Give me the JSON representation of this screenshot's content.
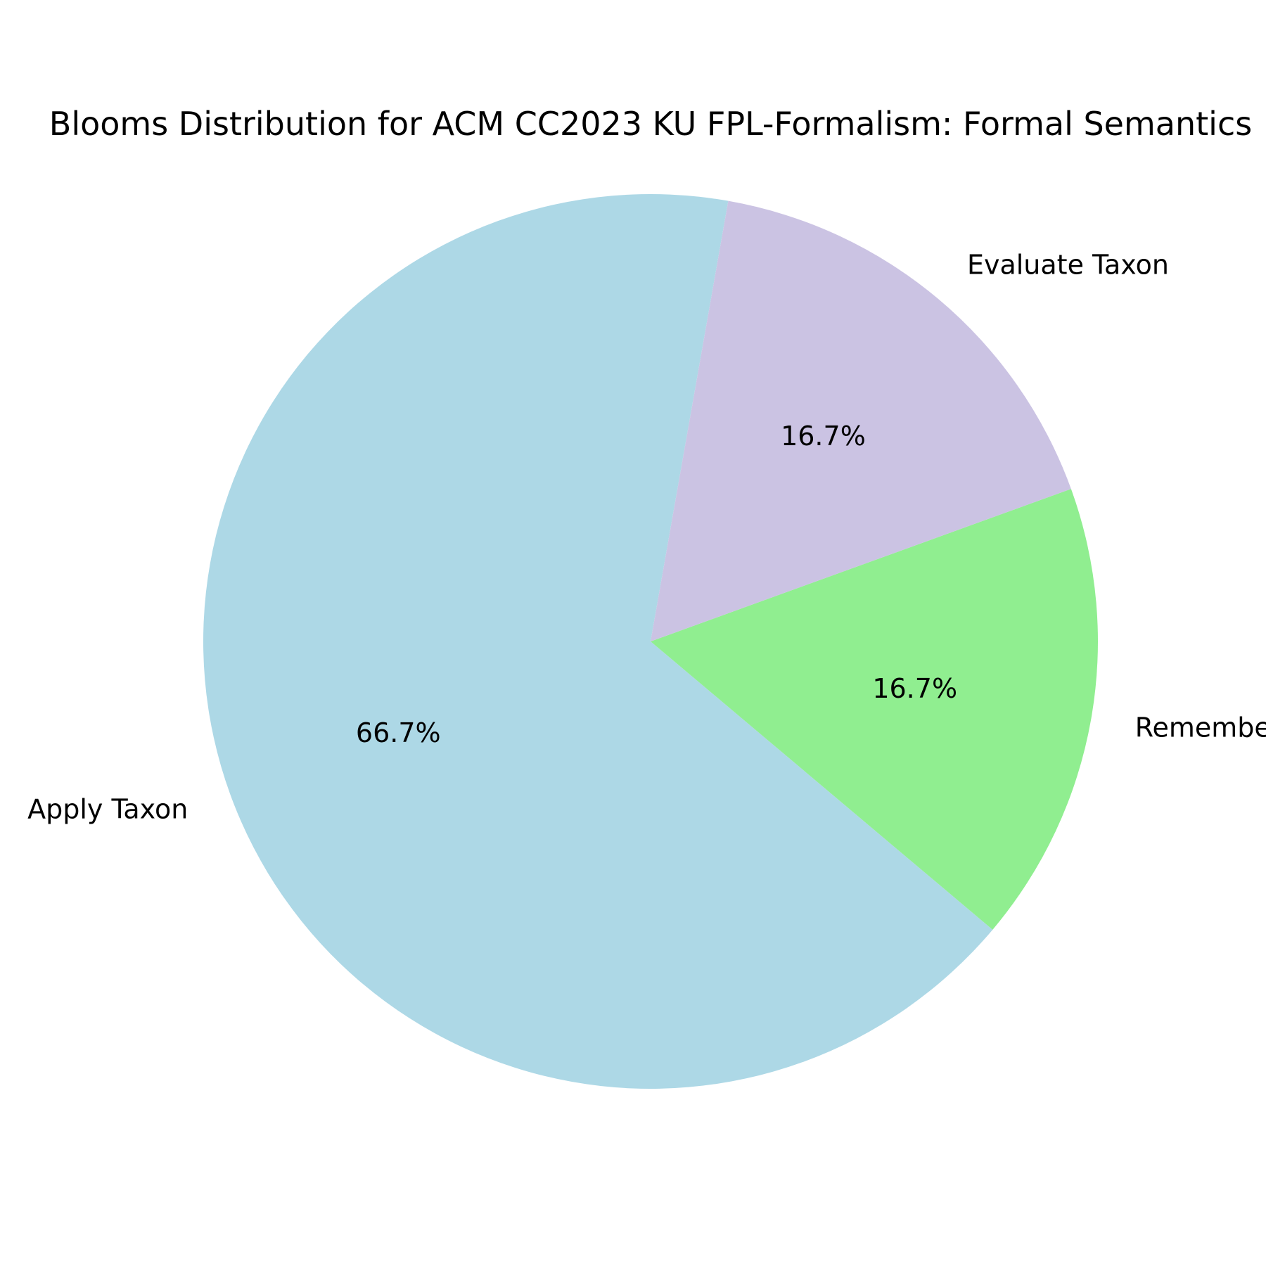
{
  "chart_data": {
    "type": "pie",
    "title": "Blooms Distribution for ACM CC2023 KU FPL-Formalism: Formal Semantics",
    "slices": [
      {
        "label": "Apply Taxon",
        "value": 66.7,
        "pct_label": "66.7%",
        "color": "#add8e6"
      },
      {
        "label": "Remember Taxon",
        "value": 16.7,
        "pct_label": "16.7%",
        "color": "#90ee90"
      },
      {
        "label": "Evaluate Taxon",
        "value": 16.7,
        "pct_label": "16.7%",
        "color": "#cbc3e3"
      }
    ],
    "start_angle_deg": 80,
    "direction": "counterclockwise",
    "legend": "none"
  }
}
